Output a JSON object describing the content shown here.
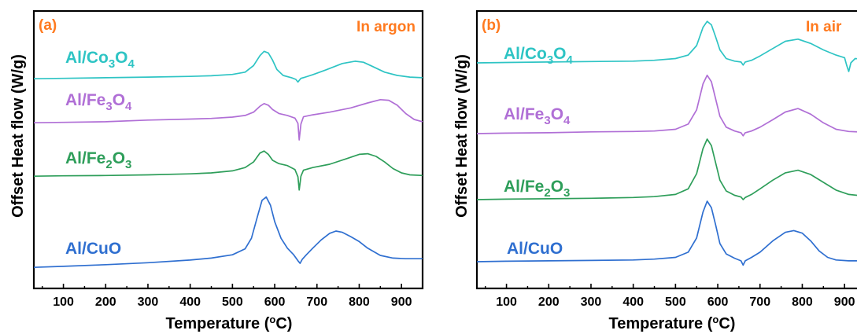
{
  "figure_ylabel": "Offset Heat flow (W/g)",
  "chart_data": [
    {
      "type": "line",
      "panel_label": "(a)",
      "annotation": "In argon",
      "xlabel_main": "Temperature (",
      "xlabel_sup": "o",
      "xlabel_end": "C)",
      "xlim": [
        30,
        950
      ],
      "xticks": [
        100,
        200,
        300,
        400,
        500,
        600,
        700,
        800,
        900
      ],
      "grid": false,
      "series": [
        {
          "key": "Al/Co3O4",
          "label_main": "Al/Co",
          "sub1": "3",
          "mid": "O",
          "sub2": "4",
          "color": "#2ec4c4",
          "x": [
            30,
            100,
            200,
            300,
            400,
            450,
            500,
            530,
            550,
            565,
            575,
            585,
            595,
            605,
            620,
            640,
            650,
            655,
            658,
            662,
            670,
            690,
            720,
            760,
            790,
            810,
            830,
            860,
            890,
            920,
            950
          ],
          "y": [
            0.02,
            0.03,
            0.05,
            0.07,
            0.09,
            0.11,
            0.15,
            0.22,
            0.42,
            0.72,
            0.85,
            0.8,
            0.58,
            0.3,
            0.12,
            0.05,
            0.0,
            -0.08,
            -0.03,
            0.03,
            0.06,
            0.14,
            0.28,
            0.48,
            0.55,
            0.52,
            0.4,
            0.22,
            0.12,
            0.07,
            0.05
          ]
        },
        {
          "key": "Al/Fe3O4",
          "label_main": "Al/Fe",
          "sub1": "3",
          "mid": "O",
          "sub2": "4",
          "color": "#b06fd6",
          "x": [
            30,
            100,
            200,
            300,
            400,
            450,
            500,
            530,
            550,
            565,
            575,
            585,
            595,
            610,
            630,
            648,
            655,
            658,
            662,
            668,
            690,
            730,
            780,
            820,
            850,
            870,
            890,
            910,
            930,
            950
          ],
          "y": [
            0.02,
            0.03,
            0.05,
            0.1,
            0.13,
            0.15,
            0.19,
            0.24,
            0.34,
            0.52,
            0.6,
            0.55,
            0.42,
            0.3,
            0.24,
            0.16,
            0.0,
            -0.5,
            -0.02,
            0.2,
            0.26,
            0.34,
            0.47,
            0.62,
            0.72,
            0.7,
            0.55,
            0.3,
            0.12,
            0.05
          ]
        },
        {
          "key": "Al/Fe2O3",
          "label_main": "Al/Fe",
          "sub1": "2",
          "mid": "O",
          "sub2": "3",
          "color": "#2e9e5a",
          "x": [
            30,
            100,
            200,
            300,
            400,
            450,
            500,
            530,
            550,
            565,
            575,
            585,
            595,
            610,
            630,
            648,
            655,
            658,
            662,
            668,
            690,
            730,
            770,
            800,
            820,
            840,
            860,
            880,
            900,
            920,
            950
          ],
          "y": [
            0.02,
            0.03,
            0.04,
            0.06,
            0.09,
            0.12,
            0.18,
            0.28,
            0.45,
            0.72,
            0.78,
            0.68,
            0.5,
            0.4,
            0.34,
            0.22,
            0.0,
            -0.4,
            0.02,
            0.2,
            0.28,
            0.38,
            0.55,
            0.68,
            0.7,
            0.62,
            0.45,
            0.25,
            0.12,
            0.06,
            0.04
          ]
        },
        {
          "key": "Al/CuO",
          "label_main": "Al/CuO",
          "sub1": "",
          "mid": "",
          "sub2": "",
          "color": "#2f6fd0",
          "x": [
            30,
            100,
            200,
            300,
            400,
            450,
            500,
            530,
            545,
            560,
            570,
            580,
            590,
            600,
            615,
            630,
            645,
            655,
            660,
            665,
            675,
            690,
            710,
            730,
            745,
            760,
            780,
            800,
            820,
            850,
            880,
            910,
            950
          ],
          "y": [
            0.02,
            0.05,
            0.1,
            0.16,
            0.24,
            0.3,
            0.4,
            0.58,
            0.9,
            1.6,
            2.05,
            2.15,
            1.9,
            1.4,
            0.9,
            0.6,
            0.4,
            0.22,
            0.14,
            0.26,
            0.4,
            0.6,
            0.85,
            1.05,
            1.12,
            1.08,
            0.95,
            0.8,
            0.6,
            0.38,
            0.3,
            0.28,
            0.28
          ]
        }
      ]
    },
    {
      "type": "line",
      "panel_label": "(b)",
      "annotation": "In air",
      "xlabel_main": "Temperature (",
      "xlabel_sup": "o",
      "xlabel_end": "C)",
      "xlim": [
        30,
        950
      ],
      "xticks": [
        100,
        200,
        300,
        400,
        500,
        600,
        700,
        800,
        900
      ],
      "grid": false,
      "series": [
        {
          "key": "Al/Co3O4",
          "label_main": "Al/Co",
          "sub1": "3",
          "mid": "O",
          "sub2": "4",
          "color": "#2ec4c4",
          "x": [
            30,
            100,
            200,
            300,
            400,
            450,
            500,
            530,
            550,
            565,
            575,
            585,
            595,
            605,
            620,
            640,
            655,
            660,
            665,
            680,
            700,
            730,
            760,
            790,
            820,
            850,
            880,
            900,
            905,
            910,
            915,
            925,
            950
          ],
          "y": [
            0.0,
            0.01,
            0.02,
            0.03,
            0.04,
            0.06,
            0.1,
            0.18,
            0.4,
            0.82,
            0.96,
            0.88,
            0.6,
            0.3,
            0.1,
            0.04,
            0.02,
            -0.05,
            0.02,
            0.06,
            0.16,
            0.33,
            0.5,
            0.55,
            0.45,
            0.3,
            0.18,
            0.12,
            -0.05,
            -0.2,
            0.0,
            0.1,
            0.08
          ]
        },
        {
          "key": "Al/Fe3O4",
          "label_main": "Al/Fe",
          "sub1": "3",
          "mid": "O",
          "sub2": "4",
          "color": "#b06fd6",
          "x": [
            30,
            100,
            200,
            300,
            400,
            450,
            500,
            530,
            550,
            565,
            575,
            585,
            595,
            605,
            620,
            640,
            655,
            660,
            665,
            680,
            700,
            730,
            760,
            790,
            820,
            850,
            880,
            910,
            950
          ],
          "y": [
            0.0,
            0.01,
            0.02,
            0.04,
            0.05,
            0.06,
            0.1,
            0.22,
            0.55,
            1.15,
            1.35,
            1.2,
            0.8,
            0.4,
            0.15,
            0.06,
            0.02,
            -0.05,
            0.02,
            0.06,
            0.15,
            0.32,
            0.5,
            0.58,
            0.45,
            0.25,
            0.1,
            0.05,
            0.03
          ]
        },
        {
          "key": "Al/Fe2O3",
          "label_main": "Al/Fe",
          "sub1": "2",
          "mid": "O",
          "sub2": "3",
          "color": "#2e9e5a",
          "x": [
            30,
            100,
            200,
            300,
            400,
            450,
            500,
            530,
            550,
            565,
            575,
            585,
            595,
            605,
            620,
            640,
            655,
            660,
            665,
            680,
            700,
            730,
            760,
            790,
            820,
            850,
            880,
            910,
            950
          ],
          "y": [
            0.0,
            0.01,
            0.02,
            0.03,
            0.05,
            0.07,
            0.12,
            0.25,
            0.6,
            1.18,
            1.4,
            1.25,
            0.85,
            0.45,
            0.2,
            0.1,
            0.06,
            0.0,
            0.05,
            0.12,
            0.25,
            0.45,
            0.62,
            0.68,
            0.58,
            0.4,
            0.22,
            0.12,
            0.08
          ]
        },
        {
          "key": "Al/CuO",
          "label_main": "Al/CuO",
          "sub1": "",
          "mid": "",
          "sub2": "",
          "color": "#2f6fd0",
          "x": [
            30,
            100,
            200,
            300,
            400,
            450,
            500,
            530,
            550,
            565,
            575,
            585,
            595,
            605,
            620,
            640,
            655,
            660,
            665,
            680,
            700,
            730,
            760,
            780,
            800,
            820,
            840,
            860,
            880,
            910,
            950
          ],
          "y": [
            0.0,
            0.01,
            0.02,
            0.03,
            0.04,
            0.06,
            0.1,
            0.22,
            0.55,
            1.15,
            1.4,
            1.25,
            0.85,
            0.42,
            0.18,
            0.08,
            0.02,
            -0.08,
            0.02,
            0.1,
            0.22,
            0.48,
            0.68,
            0.72,
            0.66,
            0.48,
            0.25,
            0.1,
            0.04,
            0.02,
            0.02
          ]
        }
      ]
    }
  ]
}
